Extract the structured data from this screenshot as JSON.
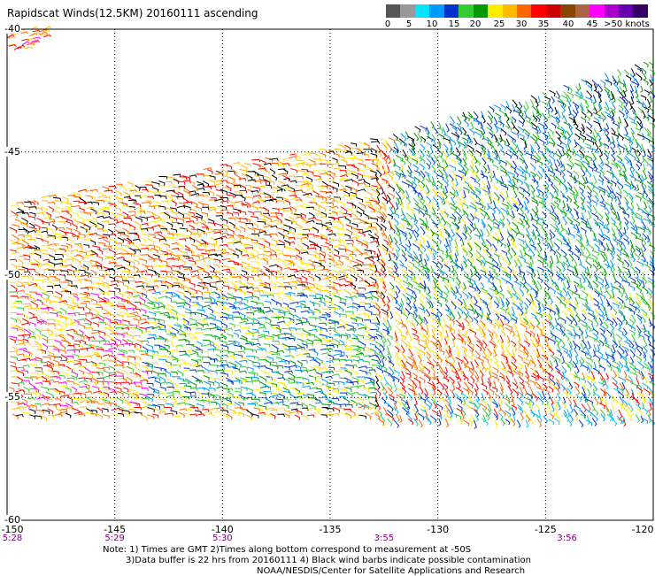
{
  "title": "Rapidscat Winds(12.5KM) 20160111 ascending",
  "legend": {
    "colors": [
      "#555555",
      "#999999",
      "#00e5ff",
      "#0099ff",
      "#0033cc",
      "#33cc33",
      "#009900",
      "#ffee00",
      "#ffbb00",
      "#ff6600",
      "#ff0000",
      "#cc0000",
      "#884400",
      "#aa6644",
      "#ff00ff",
      "#aa00cc",
      "#6600aa",
      "#330066"
    ],
    "labels": [
      "0",
      "5",
      "10",
      "15",
      "20",
      "25",
      "30",
      "35",
      "40",
      "45",
      ">50 knots"
    ]
  },
  "map": {
    "lon_ticks": [
      "-150",
      "-145",
      "-140",
      "-135",
      "-130",
      "-125",
      "-120"
    ],
    "lat_ticks": [
      "-40",
      "-45",
      "-50",
      "-55",
      "-60"
    ],
    "time_labels": [
      {
        "lon": -150,
        "text": "5:28"
      },
      {
        "lon": -145,
        "text": "5:29"
      },
      {
        "lon": -140,
        "text": "5:30"
      },
      {
        "lon": -132.5,
        "text": "3:55"
      },
      {
        "lon": -124,
        "text": "3:56"
      }
    ]
  },
  "notes": {
    "line1": "Note: 1) Times are GMT 2)Times along bottom correspond to measurement at -50S",
    "line2": "3)Data buffer is 22 hrs from 20160111 4) Black wind barbs indicate possible contamination",
    "line3": "NOAA/NESDIS/Center for Satellite Applications and Research"
  }
}
